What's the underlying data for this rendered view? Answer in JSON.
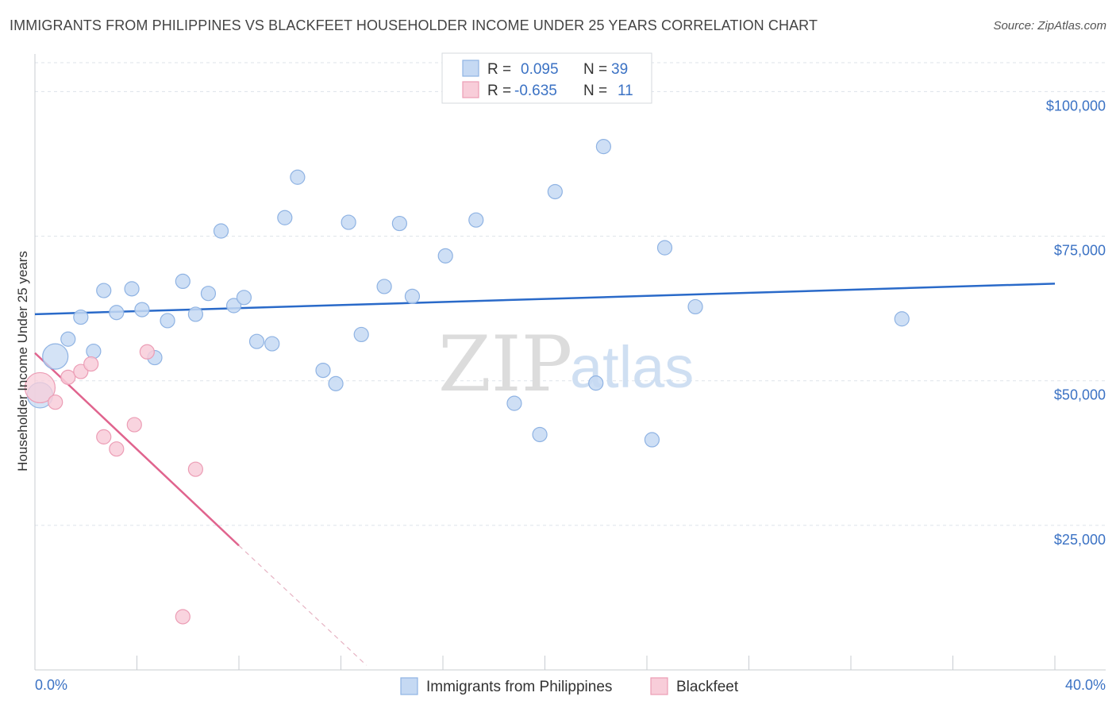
{
  "title": "IMMIGRANTS FROM PHILIPPINES VS BLACKFEET HOUSEHOLDER INCOME UNDER 25 YEARS CORRELATION CHART",
  "source": "Source: ZipAtlas.com",
  "watermark": {
    "zip": "ZIP",
    "atlas": "atlas"
  },
  "colors": {
    "blue_fill": "#c5d9f3",
    "blue_stroke": "#8fb3e3",
    "blue_line": "#2a6ac9",
    "pink_fill": "#f8cdd9",
    "pink_stroke": "#ec9db5",
    "pink_line": "#e0648e",
    "grid": "#dde3ea",
    "axis_text": "#3b72c4"
  },
  "legend": {
    "rows": [
      {
        "r_label": "R =",
        "r_value": "0.095",
        "n_label": "N =",
        "n_value": "39"
      },
      {
        "r_label": "R =",
        "r_value": "-0.635",
        "n_label": "N =",
        "n_value": "11"
      }
    ]
  },
  "chart_data": {
    "type": "scatter",
    "title": "IMMIGRANTS FROM PHILIPPINES VS BLACKFEET HOUSEHOLDER INCOME UNDER 25 YEARS CORRELATION CHART",
    "xlabel": "",
    "ylabel": "Householder Income Under 25 years",
    "xlim": [
      0,
      40
    ],
    "ylim": [
      0,
      105000
    ],
    "x_tick_labels": [
      "0.0%",
      "40.0%"
    ],
    "y_ticks": [
      25000,
      50000,
      75000,
      100000
    ],
    "y_tick_labels": [
      "$25,000",
      "$50,000",
      "$75,000",
      "$100,000"
    ],
    "grid": true,
    "series": [
      {
        "name": "Immigrants from Philippines",
        "R": 0.095,
        "N": 39,
        "trend": {
          "x": [
            0,
            40
          ],
          "y": [
            61500,
            66800
          ]
        },
        "points": [
          {
            "x": 0.2,
            "y": 47500,
            "big": true
          },
          {
            "x": 0.8,
            "y": 54200,
            "big": true
          },
          {
            "x": 1.3,
            "y": 57200
          },
          {
            "x": 1.8,
            "y": 61000
          },
          {
            "x": 2.3,
            "y": 55100
          },
          {
            "x": 2.7,
            "y": 65600
          },
          {
            "x": 3.2,
            "y": 61800
          },
          {
            "x": 3.8,
            "y": 65900
          },
          {
            "x": 4.2,
            "y": 62300
          },
          {
            "x": 4.7,
            "y": 54000
          },
          {
            "x": 5.2,
            "y": 60400
          },
          {
            "x": 5.8,
            "y": 67200
          },
          {
            "x": 6.3,
            "y": 61500
          },
          {
            "x": 6.8,
            "y": 65100
          },
          {
            "x": 7.3,
            "y": 75900
          },
          {
            "x": 7.8,
            "y": 63000
          },
          {
            "x": 8.2,
            "y": 64400
          },
          {
            "x": 8.7,
            "y": 56800
          },
          {
            "x": 9.3,
            "y": 56400
          },
          {
            "x": 9.8,
            "y": 78200
          },
          {
            "x": 10.3,
            "y": 85200
          },
          {
            "x": 11.3,
            "y": 51800
          },
          {
            "x": 11.8,
            "y": 49500
          },
          {
            "x": 12.3,
            "y": 77400
          },
          {
            "x": 12.8,
            "y": 58000
          },
          {
            "x": 13.7,
            "y": 66300
          },
          {
            "x": 14.3,
            "y": 77200
          },
          {
            "x": 14.8,
            "y": 64600
          },
          {
            "x": 16.1,
            "y": 71600
          },
          {
            "x": 17.3,
            "y": 77800
          },
          {
            "x": 18.8,
            "y": 46100
          },
          {
            "x": 19.8,
            "y": 40700
          },
          {
            "x": 20.4,
            "y": 82700
          },
          {
            "x": 22.0,
            "y": 49600
          },
          {
            "x": 22.3,
            "y": 90500
          },
          {
            "x": 24.2,
            "y": 39800
          },
          {
            "x": 24.7,
            "y": 73000
          },
          {
            "x": 25.9,
            "y": 62800
          },
          {
            "x": 34.0,
            "y": 60700
          }
        ]
      },
      {
        "name": "Blackfeet",
        "R": -0.635,
        "N": 11,
        "trend": {
          "x": [
            0,
            8.0
          ],
          "y": [
            54800,
            21500
          ]
        },
        "trend_dashed": {
          "x": [
            8.0,
            13.0
          ],
          "y": [
            21500,
            800
          ]
        },
        "points": [
          {
            "x": 0.2,
            "y": 48800,
            "big": true
          },
          {
            "x": 0.8,
            "y": 46300
          },
          {
            "x": 1.3,
            "y": 50600
          },
          {
            "x": 1.8,
            "y": 51600
          },
          {
            "x": 2.2,
            "y": 52900
          },
          {
            "x": 2.7,
            "y": 40300
          },
          {
            "x": 3.2,
            "y": 38200
          },
          {
            "x": 3.9,
            "y": 42400
          },
          {
            "x": 4.4,
            "y": 55000
          },
          {
            "x": 5.8,
            "y": 9200
          },
          {
            "x": 6.3,
            "y": 34700
          }
        ]
      }
    ]
  }
}
